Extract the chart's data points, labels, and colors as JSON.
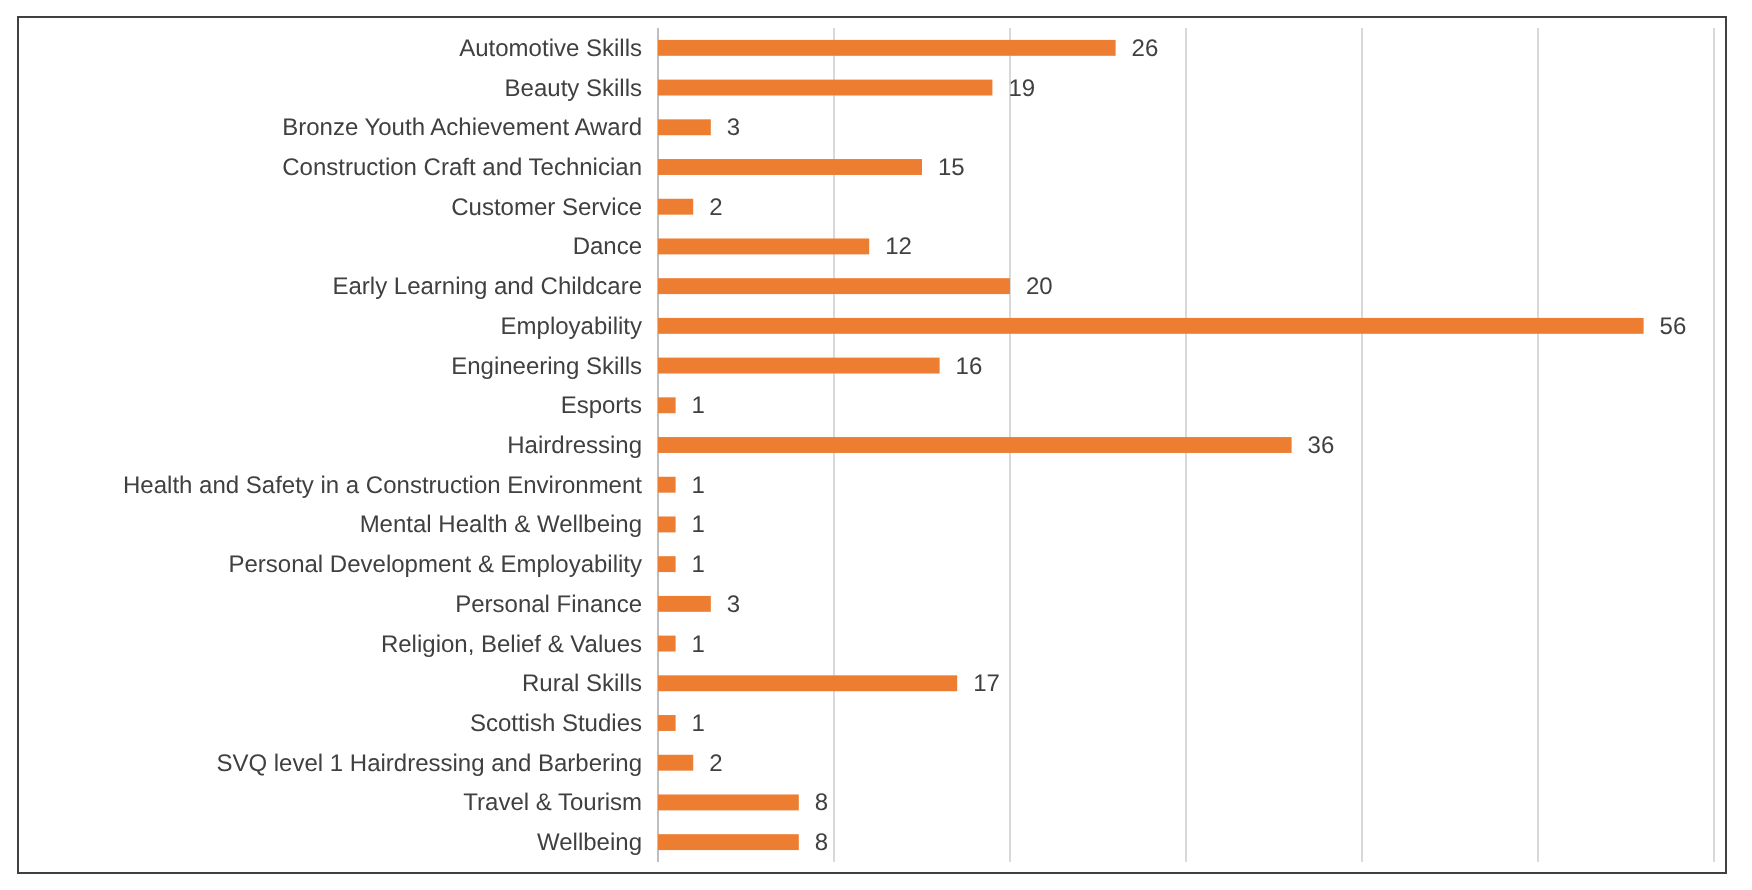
{
  "chart_data": {
    "type": "bar",
    "orientation": "horizontal",
    "categories": [
      "Automotive Skills",
      "Beauty Skills",
      "Bronze Youth Achievement Award",
      "Construction Craft and Technician",
      "Customer Service",
      "Dance",
      "Early Learning and Childcare",
      "Employability",
      "Engineering Skills",
      "Esports",
      "Hairdressing",
      "Health and Safety in a Construction Environment",
      "Mental Health & Wellbeing",
      "Personal Development & Employability",
      "Personal Finance",
      "Religion, Belief & Values",
      "Rural Skills",
      "Scottish Studies",
      "SVQ level 1 Hairdressing and Barbering",
      "Travel & Tourism",
      "Wellbeing"
    ],
    "values": [
      26,
      19,
      3,
      15,
      2,
      12,
      20,
      56,
      16,
      1,
      36,
      1,
      1,
      1,
      3,
      1,
      17,
      1,
      2,
      8,
      8
    ],
    "color": "#ed7d31",
    "data_labels": true,
    "xlim": [
      0,
      60
    ],
    "xticks": [
      {
        "value": 0,
        "label": null
      },
      {
        "value": 10,
        "label": null
      },
      {
        "value": 20,
        "label": null
      },
      {
        "value": 30,
        "label": null
      },
      {
        "value": 40,
        "label": null
      },
      {
        "value": 50,
        "label": null
      },
      {
        "value": 60,
        "label": null
      }
    ],
    "tick_labels": "y",
    "grid": "x"
  }
}
